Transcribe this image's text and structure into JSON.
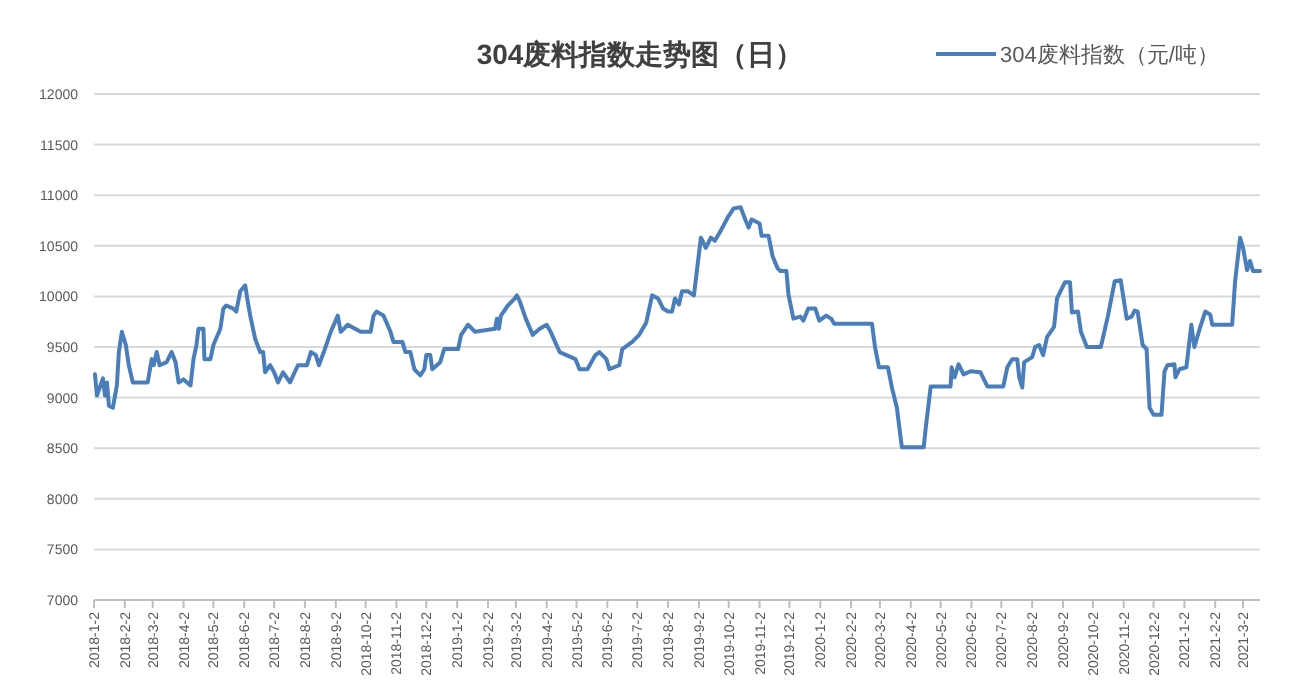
{
  "chart_data": {
    "type": "line",
    "title": "304废料指数走势图（日）",
    "legend": "top right",
    "grid": "y",
    "marker": "none",
    "line_style": "solid",
    "xlim": [
      "2018-01-02",
      "2021-03-19"
    ],
    "xticks": [
      {
        "value": "2018-01-02",
        "label": "2018-1-2"
      },
      {
        "value": "2018-02-02",
        "label": "2018-2-2"
      },
      {
        "value": "2018-03-02",
        "label": "2018-3-2"
      },
      {
        "value": "2018-04-02",
        "label": "2018-4-2"
      },
      {
        "value": "2018-05-02",
        "label": "2018-5-2"
      },
      {
        "value": "2018-06-02",
        "label": "2018-6-2"
      },
      {
        "value": "2018-07-02",
        "label": "2018-7-2"
      },
      {
        "value": "2018-08-02",
        "label": "2018-8-2"
      },
      {
        "value": "2018-09-02",
        "label": "2018-9-2"
      },
      {
        "value": "2018-10-02",
        "label": "2018-10-2"
      },
      {
        "value": "2018-11-02",
        "label": "2018-11-2"
      },
      {
        "value": "2018-12-02",
        "label": "2018-12-2"
      },
      {
        "value": "2019-01-02",
        "label": "2019-1-2"
      },
      {
        "value": "2019-02-02",
        "label": "2019-2-2"
      },
      {
        "value": "2019-03-02",
        "label": "2019-3-2"
      },
      {
        "value": "2019-04-02",
        "label": "2019-4-2"
      },
      {
        "value": "2019-05-02",
        "label": "2019-5-2"
      },
      {
        "value": "2019-06-02",
        "label": "2019-6-2"
      },
      {
        "value": "2019-07-02",
        "label": "2019-7-2"
      },
      {
        "value": "2019-08-02",
        "label": "2019-8-2"
      },
      {
        "value": "2019-09-02",
        "label": "2019-9-2"
      },
      {
        "value": "2019-10-02",
        "label": "2019-10-2"
      },
      {
        "value": "2019-11-02",
        "label": "2019-11-2"
      },
      {
        "value": "2019-12-02",
        "label": "2019-12-2"
      },
      {
        "value": "2020-01-02",
        "label": "2020-1-2"
      },
      {
        "value": "2020-02-02",
        "label": "2020-2-2"
      },
      {
        "value": "2020-03-02",
        "label": "2020-3-2"
      },
      {
        "value": "2020-04-02",
        "label": "2020-4-2"
      },
      {
        "value": "2020-05-02",
        "label": "2020-5-2"
      },
      {
        "value": "2020-06-02",
        "label": "2020-6-2"
      },
      {
        "value": "2020-07-02",
        "label": "2020-7-2"
      },
      {
        "value": "2020-08-02",
        "label": "2020-8-2"
      },
      {
        "value": "2020-09-02",
        "label": "2020-9-2"
      },
      {
        "value": "2020-10-02",
        "label": "2020-10-2"
      },
      {
        "value": "2020-11-02",
        "label": "2020-11-2"
      },
      {
        "value": "2020-12-02",
        "label": "2020-12-2"
      },
      {
        "value": "2021-01-02",
        "label": "2021-1-2"
      },
      {
        "value": "2021-02-02",
        "label": "2021-2-2"
      },
      {
        "value": "2021-03-02",
        "label": "2021-3-2"
      }
    ],
    "ylim": [
      7000,
      12000
    ],
    "yticks": [
      7000,
      7500,
      8000,
      8500,
      9000,
      9500,
      10000,
      10500,
      11000,
      11500,
      12000
    ],
    "series": [
      {
        "name": "304废料指数（元/吨）",
        "color": "#4a7ebb",
        "x": [
          "2018-01-03",
          "2018-01-05",
          "2018-01-11",
          "2018-01-13",
          "2018-01-15",
          "2018-01-17",
          "2018-01-21",
          "2018-01-25",
          "2018-01-27",
          "2018-01-30",
          "2018-02-03",
          "2018-02-06",
          "2018-02-10",
          "2018-02-25",
          "2018-03-01",
          "2018-03-03",
          "2018-03-06",
          "2018-03-09",
          "2018-03-16",
          "2018-03-21",
          "2018-03-25",
          "2018-03-28",
          "2018-04-02",
          "2018-04-09",
          "2018-04-12",
          "2018-04-15",
          "2018-04-17",
          "2018-04-22",
          "2018-04-23",
          "2018-04-29",
          "2018-05-02",
          "2018-05-09",
          "2018-05-12",
          "2018-05-15",
          "2018-05-22",
          "2018-05-25",
          "2018-05-29",
          "2018-06-03",
          "2018-06-05",
          "2018-06-08",
          "2018-06-13",
          "2018-06-18",
          "2018-06-21",
          "2018-06-23",
          "2018-06-28",
          "2018-07-02",
          "2018-07-06",
          "2018-07-11",
          "2018-07-18",
          "2018-07-26",
          "2018-08-04",
          "2018-08-08",
          "2018-08-13",
          "2018-08-16",
          "2018-08-21",
          "2018-08-28",
          "2018-09-04",
          "2018-09-07",
          "2018-09-14",
          "2018-09-27",
          "2018-10-07",
          "2018-10-10",
          "2018-10-13",
          "2018-10-20",
          "2018-10-27",
          "2018-10-30",
          "2018-11-08",
          "2018-11-11",
          "2018-11-16",
          "2018-11-20",
          "2018-11-26",
          "2018-11-30",
          "2018-12-02",
          "2018-12-06",
          "2018-12-08",
          "2018-12-16",
          "2018-12-20",
          "2019-01-03",
          "2019-01-06",
          "2019-01-13",
          "2019-01-20",
          "2019-02-09",
          "2019-02-11",
          "2019-02-13",
          "2019-02-15",
          "2019-02-22",
          "2019-03-01",
          "2019-03-03",
          "2019-03-06",
          "2019-03-12",
          "2019-03-19",
          "2019-03-26",
          "2019-04-02",
          "2019-04-06",
          "2019-04-15",
          "2019-05-01",
          "2019-05-05",
          "2019-05-13",
          "2019-05-21",
          "2019-05-25",
          "2019-06-01",
          "2019-06-04",
          "2019-06-14",
          "2019-06-17",
          "2019-06-27",
          "2019-07-04",
          "2019-07-11",
          "2019-07-17",
          "2019-07-23",
          "2019-07-28",
          "2019-08-02",
          "2019-08-06",
          "2019-08-09",
          "2019-08-13",
          "2019-08-16",
          "2019-08-22",
          "2019-08-28",
          "2019-09-04",
          "2019-09-09",
          "2019-09-14",
          "2019-09-18",
          "2019-09-24",
          "2019-10-01",
          "2019-10-07",
          "2019-10-14",
          "2019-10-19",
          "2019-10-22",
          "2019-10-25",
          "2019-11-02",
          "2019-11-04",
          "2019-11-11",
          "2019-11-15",
          "2019-11-20",
          "2019-11-23",
          "2019-11-29",
          "2019-12-01",
          "2019-12-06",
          "2019-12-13",
          "2019-12-16",
          "2019-12-21",
          "2019-12-28",
          "2020-01-01",
          "2020-01-08",
          "2020-01-13",
          "2020-01-16",
          "2020-02-23",
          "2020-02-26",
          "2020-03-01",
          "2020-03-10",
          "2020-03-14",
          "2020-03-19",
          "2020-03-24",
          "2020-04-15",
          "2020-04-17",
          "2020-04-22",
          "2020-05-12",
          "2020-05-13",
          "2020-05-16",
          "2020-05-20",
          "2020-05-25",
          "2020-06-01",
          "2020-06-11",
          "2020-06-18",
          "2020-07-04",
          "2020-07-08",
          "2020-07-13",
          "2020-07-18",
          "2020-07-20",
          "2020-07-23",
          "2020-07-25",
          "2020-08-02",
          "2020-08-05",
          "2020-08-09",
          "2020-08-13",
          "2020-08-17",
          "2020-08-24",
          "2020-08-27",
          "2020-09-04",
          "2020-09-09",
          "2020-09-11",
          "2020-09-17",
          "2020-09-20",
          "2020-09-26",
          "2020-10-10",
          "2020-10-17",
          "2020-10-24",
          "2020-10-30",
          "2020-11-05",
          "2020-11-10",
          "2020-11-13",
          "2020-11-16",
          "2020-11-21",
          "2020-11-25",
          "2020-11-28",
          "2020-12-02",
          "2020-12-10",
          "2020-12-13",
          "2020-12-16",
          "2020-12-23",
          "2020-12-24",
          "2020-12-28",
          "2021-01-04",
          "2021-01-09",
          "2021-01-12",
          "2021-01-18",
          "2021-01-23",
          "2021-01-28",
          "2021-01-30",
          "2021-02-19",
          "2021-02-22",
          "2021-02-27",
          "2021-03-02",
          "2021-03-06",
          "2021-03-09",
          "2021-03-12",
          "2021-03-19"
        ],
        "values": [
          9230,
          9020,
          9190,
          9020,
          9150,
          8920,
          8900,
          9120,
          9450,
          9650,
          9520,
          9320,
          9150,
          9150,
          9380,
          9320,
          9450,
          9320,
          9350,
          9450,
          9350,
          9150,
          9180,
          9120,
          9380,
          9520,
          9680,
          9680,
          9380,
          9380,
          9520,
          9680,
          9880,
          9910,
          9880,
          9850,
          10050,
          10110,
          9980,
          9810,
          9580,
          9450,
          9450,
          9250,
          9320,
          9250,
          9150,
          9250,
          9150,
          9320,
          9320,
          9450,
          9420,
          9320,
          9450,
          9650,
          9810,
          9650,
          9720,
          9650,
          9650,
          9810,
          9850,
          9810,
          9650,
          9550,
          9550,
          9450,
          9450,
          9280,
          9220,
          9280,
          9420,
          9420,
          9280,
          9350,
          9480,
          9480,
          9620,
          9720,
          9650,
          9680,
          9780,
          9680,
          9810,
          9910,
          9980,
          10010,
          9950,
          9780,
          9620,
          9680,
          9720,
          9650,
          9450,
          9380,
          9280,
          9280,
          9420,
          9450,
          9380,
          9280,
          9320,
          9480,
          9550,
          9620,
          9740,
          10010,
          9980,
          9880,
          9850,
          9850,
          9980,
          9920,
          10050,
          10050,
          10010,
          10580,
          10480,
          10580,
          10550,
          10650,
          10780,
          10870,
          10880,
          10750,
          10680,
          10760,
          10720,
          10600,
          10600,
          10400,
          10280,
          10250,
          10250,
          10020,
          9780,
          9800,
          9760,
          9880,
          9880,
          9760,
          9810,
          9780,
          9730,
          9730,
          9500,
          9300,
          9300,
          9100,
          8900,
          8510,
          8510,
          8700,
          9110,
          9110,
          9300,
          9200,
          9330,
          9230,
          9260,
          9250,
          9110,
          9110,
          9300,
          9380,
          9380,
          9200,
          9100,
          9350,
          9400,
          9500,
          9520,
          9420,
          9600,
          9700,
          9980,
          10140,
          10140,
          9840,
          9850,
          9650,
          9500,
          9500,
          9800,
          10150,
          10160,
          9780,
          9800,
          9860,
          9850,
          9520,
          9480,
          8900,
          8830,
          8830,
          9260,
          9320,
          9330,
          9200,
          9280,
          9300,
          9720,
          9500,
          9700,
          9850,
          9820,
          9720,
          9720,
          10150,
          10580,
          10480,
          10260,
          10350,
          10250,
          10250
        ]
      }
    ]
  }
}
